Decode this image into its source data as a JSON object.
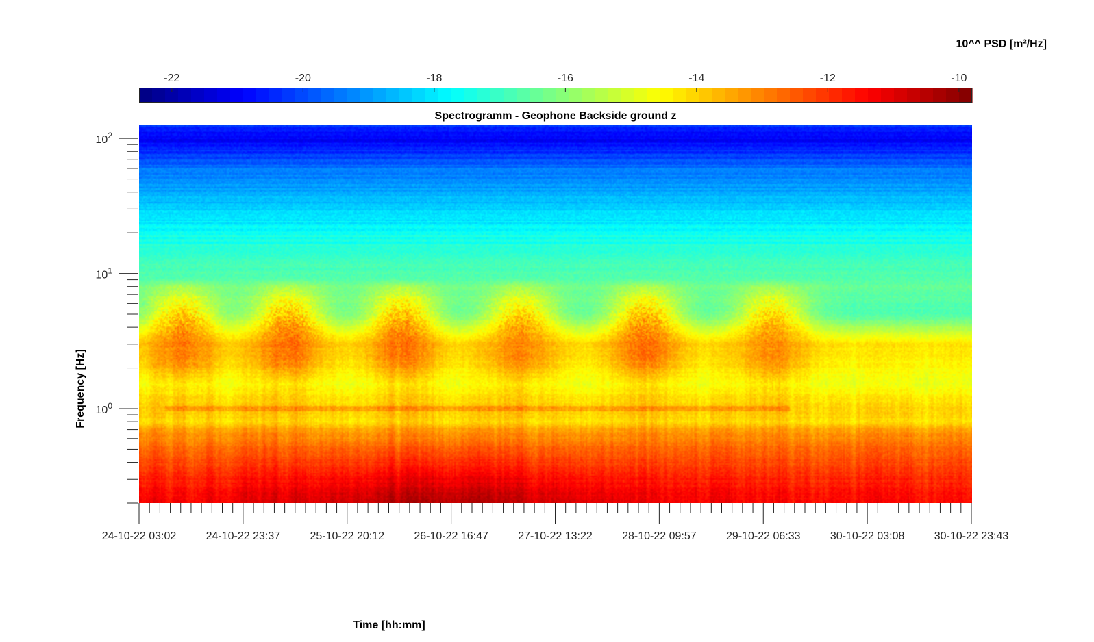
{
  "chart_data": {
    "type": "heatmap",
    "title": "Spectrogramm - Geophone Backside ground z",
    "xlabel": "Time [hh:mm]",
    "ylabel": "Frequency [Hz]",
    "colorbar_label": "10^^ PSD [m²/Hz]",
    "x_ticks": [
      "24-10-22 03:02",
      "24-10-22 23:37",
      "25-10-22 20:12",
      "26-10-22 16:47",
      "27-10-22 13:22",
      "28-10-22 09:57",
      "29-10-22 06:33",
      "30-10-22 03:08",
      "30-10-22 23:43"
    ],
    "x_minor_per_major": 10,
    "y_scale": "log",
    "ylim": [
      0.2,
      125
    ],
    "y_ticks": [
      {
        "value": 100,
        "base": "10",
        "exp": "2"
      },
      {
        "value": 10,
        "base": "10",
        "exp": "1"
      },
      {
        "value": 1,
        "base": "10",
        "exp": "0"
      }
    ],
    "colorbar": {
      "colormap": "jet",
      "range": [
        -22.5,
        -9.8
      ],
      "ticks": [
        -22,
        -20,
        -18,
        -16,
        -14,
        -12,
        -10
      ],
      "tick_labels": [
        "-22",
        "-20",
        "-18",
        "-16",
        "-14",
        "-12",
        "-10"
      ]
    },
    "log10_psd_profile_vs_frequency": [
      {
        "freq_hz": 0.2,
        "log10_psd": -11.3
      },
      {
        "freq_hz": 0.3,
        "log10_psd": -11.8
      },
      {
        "freq_hz": 0.5,
        "log10_psd": -12.6
      },
      {
        "freq_hz": 0.7,
        "log10_psd": -13.4
      },
      {
        "freq_hz": 0.8,
        "log10_psd": -14.2
      },
      {
        "freq_hz": 1.0,
        "log10_psd": -14.0
      },
      {
        "freq_hz": 1.5,
        "log10_psd": -14.8
      },
      {
        "freq_hz": 3.0,
        "log10_psd": -14.2
      },
      {
        "freq_hz": 5.0,
        "log10_psd": -16.8
      },
      {
        "freq_hz": 8.0,
        "log10_psd": -16.5
      },
      {
        "freq_hz": 15.0,
        "log10_psd": -17.2
      },
      {
        "freq_hz": 30.0,
        "log10_psd": -18.3
      },
      {
        "freq_hz": 60.0,
        "log10_psd": -19.5
      },
      {
        "freq_hz": 100.0,
        "log10_psd": -21.0
      },
      {
        "freq_hz": 125.0,
        "log10_psd": -20.3
      }
    ],
    "daily_activity_bursts": [
      {
        "center_time": "24-10-22 11:30",
        "band_hz": [
          2,
          7
        ],
        "peak_log10_psd": -13.2
      },
      {
        "center_time": "25-10-22 08:30",
        "band_hz": [
          2,
          7
        ],
        "peak_log10_psd": -13.0
      },
      {
        "center_time": "26-10-22 07:00",
        "band_hz": [
          2,
          7
        ],
        "peak_log10_psd": -13.1
      },
      {
        "center_time": "27-10-22 06:30",
        "band_hz": [
          2,
          7
        ],
        "peak_log10_psd": -13.4
      },
      {
        "center_time": "28-10-22 07:00",
        "band_hz": [
          2,
          7
        ],
        "peak_log10_psd": -13.0
      },
      {
        "center_time": "29-10-22 08:00",
        "band_hz": [
          2,
          7
        ],
        "peak_log10_psd": -13.5
      }
    ]
  }
}
